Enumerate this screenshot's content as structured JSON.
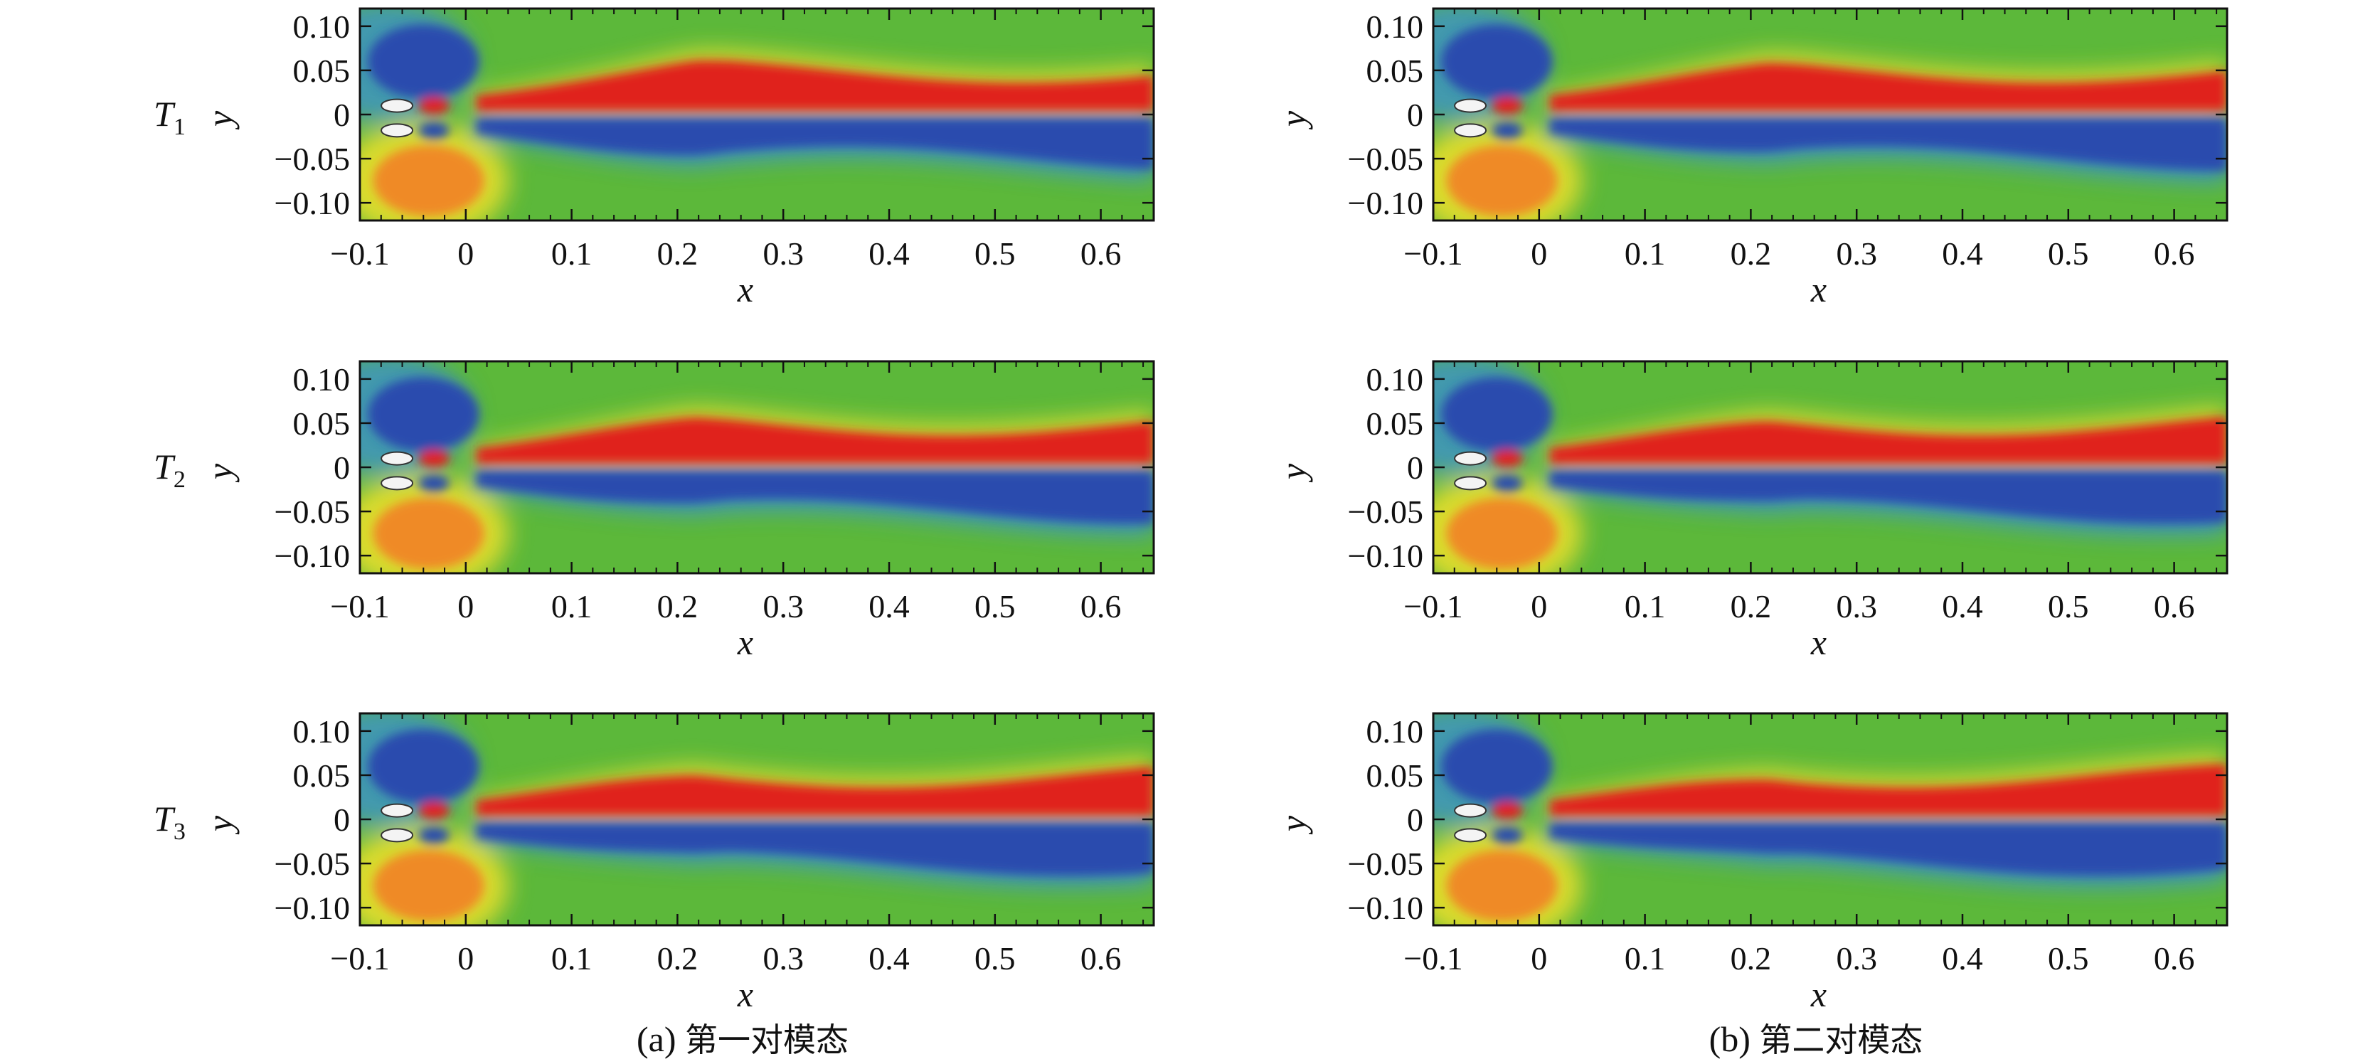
{
  "chart_data": {
    "type": "heatmap",
    "description_rows": [
      "T1",
      "T2",
      "T3"
    ],
    "x_axis": {
      "label": "x",
      "range": [
        -0.1,
        0.65
      ],
      "ticks": [
        -0.1,
        0,
        0.1,
        0.2,
        0.3,
        0.4,
        0.5,
        0.6
      ],
      "tick_labels": [
        "−0.1",
        "0",
        "0.1",
        "0.2",
        "0.3",
        "0.4",
        "0.5",
        "0.6"
      ]
    },
    "y_axis": {
      "label": "y",
      "range": [
        -0.12,
        0.12
      ],
      "ticks": [
        0.1,
        0.05,
        0,
        -0.05,
        -0.1
      ],
      "tick_labels": [
        "0.10",
        "0.05",
        "0",
        "−0.05",
        "−0.10"
      ]
    },
    "colors": {
      "background": "#5cb83a",
      "positive": "#e0221c",
      "negative": "#2a4cae",
      "mid_positive": "#ef8a25",
      "mid_negative": "#3a8fd6",
      "yellow": "#e9df2e"
    },
    "columns": [
      {
        "id": "a",
        "caption_prefix": "(a)",
        "caption_cjk": "第一对模态",
        "panels": [
          {
            "row_label_main": "T",
            "row_label_sub": "1"
          },
          {
            "row_label_main": "T",
            "row_label_sub": "2"
          },
          {
            "row_label_main": "T",
            "row_label_sub": "3"
          }
        ]
      },
      {
        "id": "b",
        "caption_prefix": "(b)",
        "caption_cjk": "第二对模态",
        "panels": [
          {
            "row_label_main": "",
            "row_label_sub": ""
          },
          {
            "row_label_main": "",
            "row_label_sub": ""
          },
          {
            "row_label_main": "",
            "row_label_sub": ""
          }
        ]
      }
    ]
  }
}
